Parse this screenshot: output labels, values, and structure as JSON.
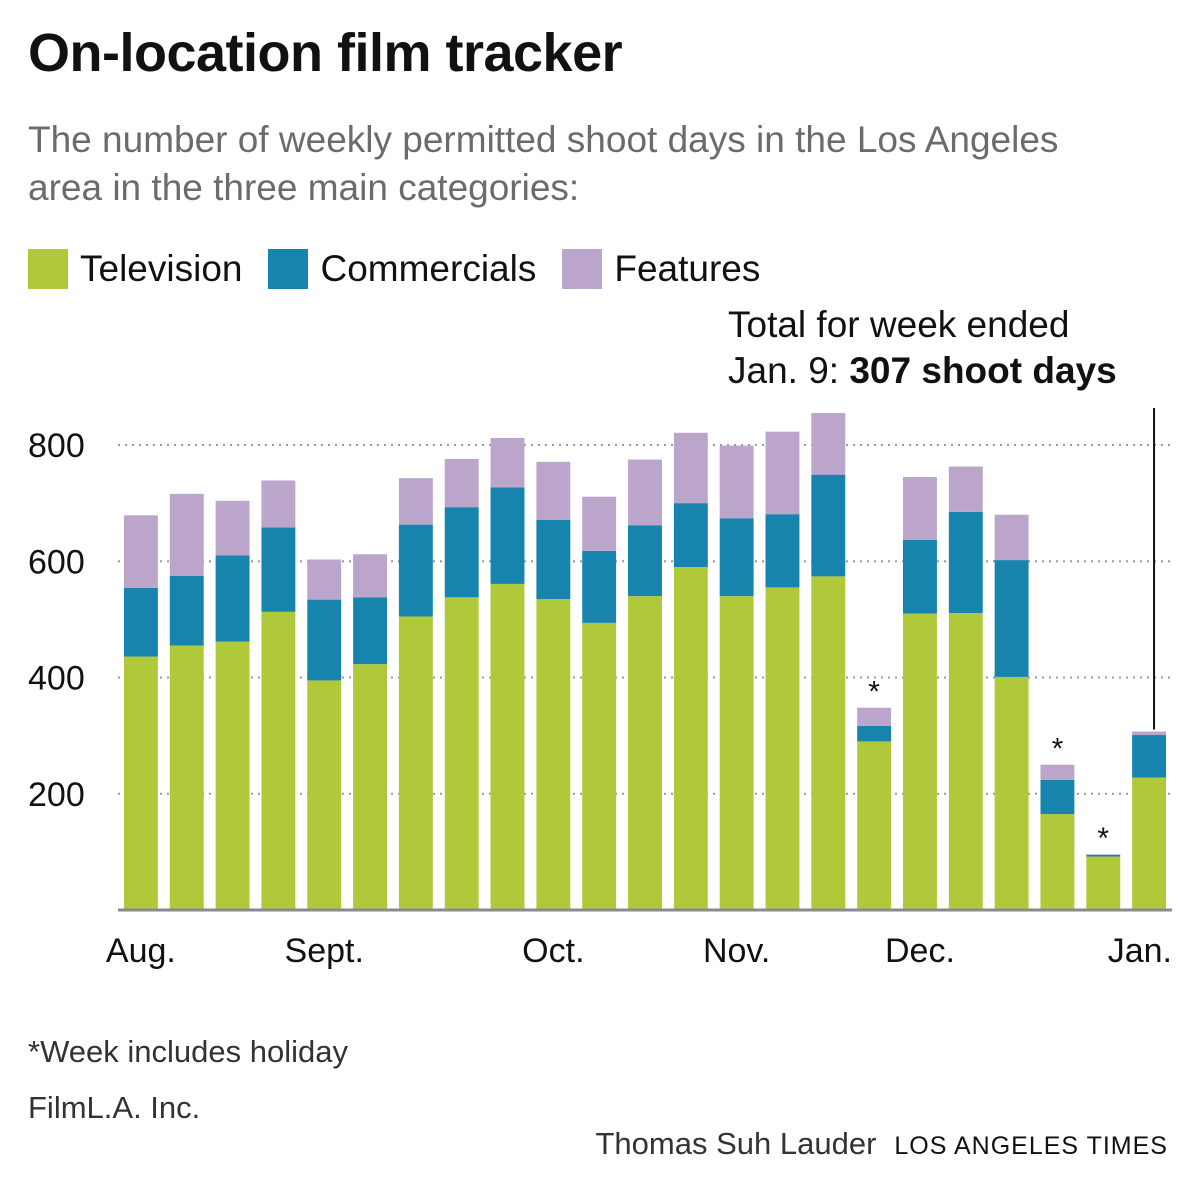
{
  "title": "On-location film tracker",
  "subtitle": "The number of weekly permitted shoot days in the Los Angeles area in the three main categories:",
  "legend": [
    {
      "label": "Television",
      "color": "#b0c93a"
    },
    {
      "label": "Commercials",
      "color": "#1684ac"
    },
    {
      "label": "Features",
      "color": "#bba5cb"
    }
  ],
  "annotation": {
    "line1": "Total for week ended",
    "line2_prefix": "Jan. 9: ",
    "line2_bold": "307 shoot days"
  },
  "footnote": "*Week includes holiday",
  "source": "FilmL.A. Inc.",
  "credit": {
    "author": "Thomas Suh Lauder",
    "org": "LOS ANGELES TIMES"
  },
  "chart_data": {
    "type": "bar",
    "stacked": true,
    "ylim": [
      0,
      850
    ],
    "yticks": [
      200,
      400,
      600,
      800
    ],
    "grid": true,
    "month_labels": [
      {
        "label": "Aug.",
        "index": 0
      },
      {
        "label": "Sept.",
        "index": 4
      },
      {
        "label": "Oct.",
        "index": 9
      },
      {
        "label": "Nov.",
        "index": 13
      },
      {
        "label": "Dec.",
        "index": 17
      },
      {
        "label": "Jan.",
        "index": 22
      }
    ],
    "holiday_marker": "*",
    "holiday_weeks": [
      16,
      20,
      21
    ],
    "series": [
      {
        "name": "Television",
        "color": "#b0c93a",
        "values": [
          436,
          455,
          462,
          513,
          395,
          423,
          505,
          538,
          561,
          535,
          494,
          540,
          590,
          540,
          555,
          574,
          290,
          510,
          511,
          401,
          165,
          92,
          228
        ]
      },
      {
        "name": "Commercials",
        "color": "#1684ac",
        "values": [
          118,
          120,
          148,
          145,
          139,
          115,
          158,
          155,
          166,
          136,
          124,
          122,
          110,
          134,
          126,
          175,
          27,
          127,
          174,
          201,
          59,
          3,
          73
        ]
      },
      {
        "name": "Features",
        "color": "#bba5cb",
        "values": [
          125,
          141,
          94,
          81,
          69,
          74,
          80,
          83,
          85,
          100,
          93,
          113,
          121,
          125,
          142,
          106,
          31,
          108,
          78,
          78,
          26,
          1,
          6
        ]
      }
    ]
  }
}
